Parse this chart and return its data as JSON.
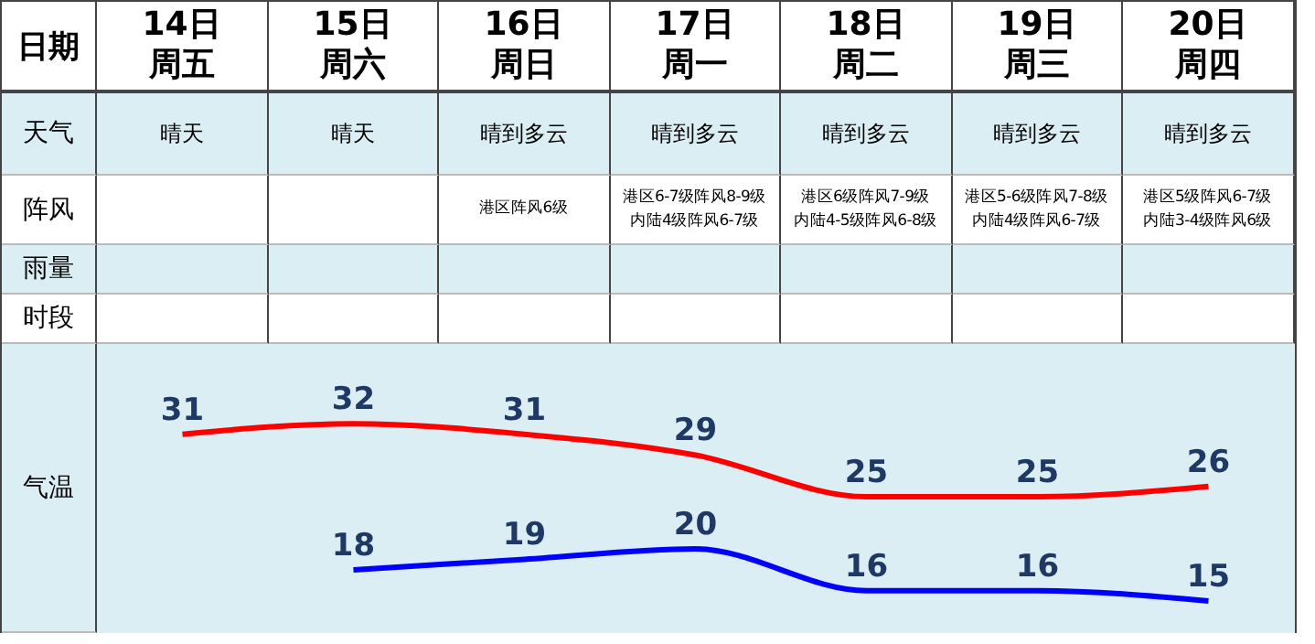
{
  "chart_data": {
    "type": "line",
    "xlabel": "日期",
    "ylabel": "气温",
    "categories": [
      "14日周五",
      "15日周六",
      "16日周日",
      "17日周一",
      "18日周二",
      "19日周三",
      "20日周四"
    ],
    "series": [
      {
        "color": "#ff0000",
        "values": [
          31,
          32,
          31,
          29,
          25,
          25,
          26
        ]
      },
      {
        "color": "#0000ff",
        "values": [
          null,
          18,
          19,
          20,
          16,
          16,
          15
        ]
      }
    ],
    "data_labels": true,
    "annotations": [
      "天气",
      "阵风",
      "雨量",
      "时段",
      "晴天",
      "晴天",
      "晴到多云",
      "晴到多云",
      "晴到多云",
      "晴到多云",
      "晴到多云",
      "港区阵风6级",
      "港区6-7级阵风8-9级",
      "内陆4级阵风6-7级",
      "港区6级阵风7-9级",
      "内陆4-5级阵风6-8级",
      "港区5-6级阵风7-8级",
      "内陆4级阵风6-7级",
      "港区5级阵风6-7级",
      "内陆3-4级阵风6级"
    ]
  }
}
